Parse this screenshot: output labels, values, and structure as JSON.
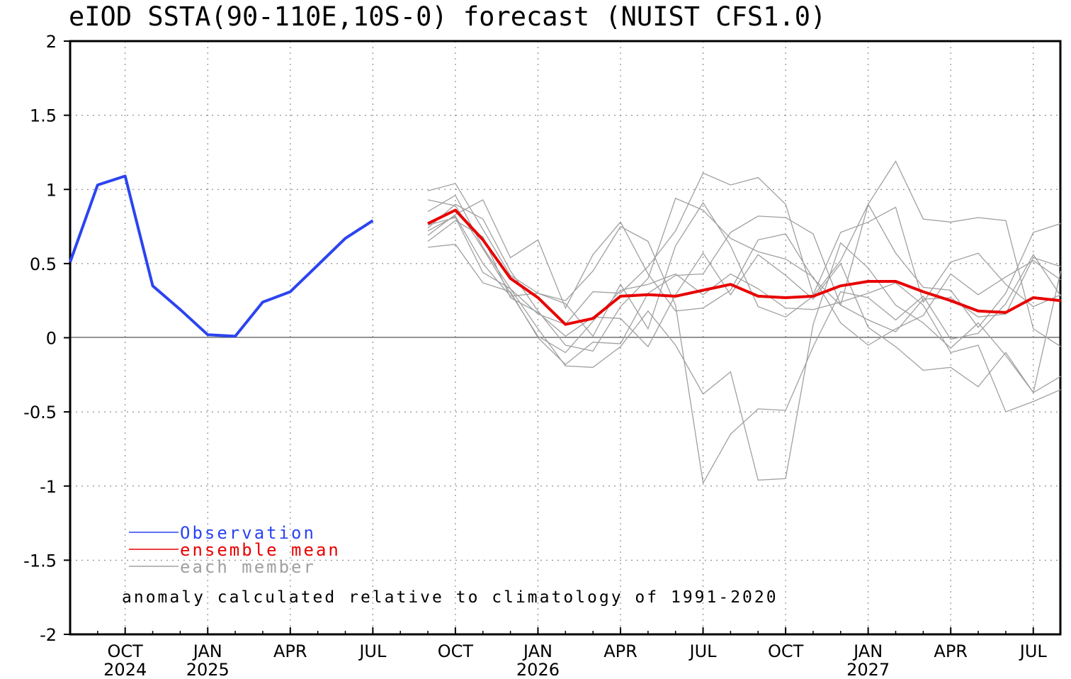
{
  "chart_data": {
    "type": "line",
    "title": "eIOD SSTA(90-110E,10S-0) forecast (NUIST CFS1.0)",
    "ylim": [
      -2,
      2
    ],
    "yticks": [
      "2",
      "1.5",
      "1",
      "0.5",
      "0",
      "-0.5",
      "-1",
      "-1.5",
      "-2"
    ],
    "grid": true,
    "x_axis": {
      "type": "monthly time",
      "range": [
        "2024-08",
        "2027-08"
      ],
      "tick_labels": [
        {
          "month": "OCT",
          "year": "2024"
        },
        {
          "month": "JAN",
          "year": "2025"
        },
        {
          "month": "APR",
          "year": ""
        },
        {
          "month": "JUL",
          "year": ""
        },
        {
          "month": "OCT",
          "year": ""
        },
        {
          "month": "JAN",
          "year": "2026"
        },
        {
          "month": "APR",
          "year": ""
        },
        {
          "month": "JUL",
          "year": ""
        },
        {
          "month": "OCT",
          "year": ""
        },
        {
          "month": "JAN",
          "year": "2027"
        },
        {
          "month": "APR",
          "year": ""
        },
        {
          "month": "JUL",
          "year": ""
        }
      ]
    },
    "observation": {
      "name": "Observation",
      "color": "#2b44f0",
      "x": [
        "2024-08",
        "2024-09",
        "2024-10",
        "2024-11",
        "2024-12",
        "2025-01",
        "2025-02",
        "2025-03",
        "2025-04",
        "2025-05",
        "2025-06",
        "2025-07",
        "2025-08"
      ],
      "values": [
        0.51,
        1.03,
        1.09,
        0.35,
        0.19,
        0.02,
        0.01,
        0.24,
        0.31,
        0.49,
        0.67,
        0.79,
        null
      ]
    },
    "ensemble_mean": {
      "name": "ensemble mean",
      "color": "#e80000",
      "x": [
        "2025-09",
        "2025-10",
        "2025-11",
        "2025-12",
        "2026-01",
        "2026-02",
        "2026-03",
        "2026-04",
        "2026-05",
        "2026-06",
        "2026-07",
        "2026-08",
        "2026-09",
        "2026-10",
        "2026-11",
        "2026-12",
        "2027-01",
        "2027-02",
        "2027-03",
        "2027-04",
        "2027-05",
        "2027-06",
        "2027-07",
        "2027-08"
      ],
      "values": [
        0.77,
        0.86,
        0.66,
        0.4,
        0.27,
        0.09,
        0.13,
        0.28,
        0.29,
        0.28,
        0.32,
        0.36,
        0.28,
        0.27,
        0.28,
        0.35,
        0.38,
        0.38,
        0.31,
        0.25,
        0.18,
        0.17,
        0.27,
        0.25
      ]
    },
    "members": {
      "name": "each member",
      "color": "#a0a0a0",
      "x_start": "2025-09",
      "series": [
        [
          0.99,
          1.04,
          0.73,
          0.42,
          0.3,
          0.25,
          0.45,
          0.75,
          0.65,
          0.22,
          -0.98,
          -0.65,
          -0.48,
          -0.49,
          -0.06,
          0.31,
          0.27,
          0.12,
          0.28,
          -0.01,
          0.03,
          0.23,
          0.56,
          0.28
        ],
        [
          0.69,
          0.83,
          0.93,
          0.54,
          0.66,
          0.2,
          0.56,
          0.78,
          0.43,
          0.18,
          0.2,
          0.32,
          0.66,
          0.7,
          0.4,
          0.22,
          0.9,
          0.57,
          0.34,
          0.32,
          0.07,
          0.3,
          0.71,
          0.77
        ],
        [
          0.72,
          0.82,
          0.5,
          0.28,
          0.3,
          0.23,
          0.01,
          0.36,
          0.06,
          0.62,
          0.91,
          0.62,
          0.21,
          0.14,
          0.28,
          0.52,
          0.9,
          1.19,
          0.8,
          0.78,
          0.81,
          0.79,
          0.06,
          -0.06
        ],
        [
          0.74,
          0.9,
          0.8,
          0.45,
          0.18,
          -0.05,
          -0.09,
          0.21,
          0.4,
          0.94,
          0.86,
          0.67,
          0.58,
          0.53,
          0.41,
          0.1,
          -0.05,
          0.06,
          0.15,
          0.43,
          0.29,
          0.41,
          0.52,
          0.39
        ],
        [
          0.76,
          0.81,
          0.44,
          0.33,
          0.16,
          0.09,
          0.31,
          0.3,
          0.48,
          0.72,
          1.11,
          1.03,
          1.08,
          0.9,
          0.29,
          0.71,
          0.78,
          0.88,
          0.24,
          0.51,
          0.57,
          0.36,
          0.21,
          0.29
        ],
        [
          0.61,
          0.63,
          0.37,
          0.31,
          0.0,
          -0.18,
          -0.03,
          -0.04,
          0.3,
          0.42,
          0.43,
          0.71,
          0.82,
          0.81,
          0.7,
          0.22,
          0.12,
          0.04,
          0.26,
          0.27,
          0.14,
          0.16,
          0.54,
          0.48
        ],
        [
          0.65,
          0.79,
          0.68,
          0.27,
          0.17,
          0.01,
          0.14,
          0.13,
          -0.06,
          0.29,
          0.57,
          0.29,
          0.56,
          0.42,
          0.26,
          0.5,
          0.07,
          -0.06,
          -0.22,
          -0.2,
          -0.33,
          -0.1,
          -0.37,
          -0.26
        ],
        [
          0.93,
          0.89,
          0.6,
          0.3,
          0.01,
          -0.1,
          0.11,
          0.32,
          0.36,
          0.43,
          0.29,
          0.43,
          0.33,
          0.2,
          0.19,
          0.24,
          0.3,
          0.37,
          0.22,
          -0.1,
          -0.05,
          -0.5,
          -0.43,
          -0.35
        ],
        [
          0.85,
          0.96,
          0.61,
          0.33,
          0.06,
          -0.19,
          -0.2,
          -0.06,
          0.18,
          -0.05,
          -0.38,
          -0.23,
          -0.96,
          -0.95,
          0.09,
          0.64,
          0.47,
          0.22,
          0.1,
          -0.07,
          0.1,
          -0.12,
          -0.37,
          0.45
        ]
      ]
    },
    "legend": {
      "placement": "bottom-left",
      "entries": [
        {
          "label": "Observation",
          "color": "#2b44f0"
        },
        {
          "label": "ensemble mean",
          "color": "#e80000"
        },
        {
          "label": "each member",
          "color": "#a0a0a0"
        }
      ]
    },
    "annotation": "anomaly calculated relative to climatology of 1991-2020"
  }
}
